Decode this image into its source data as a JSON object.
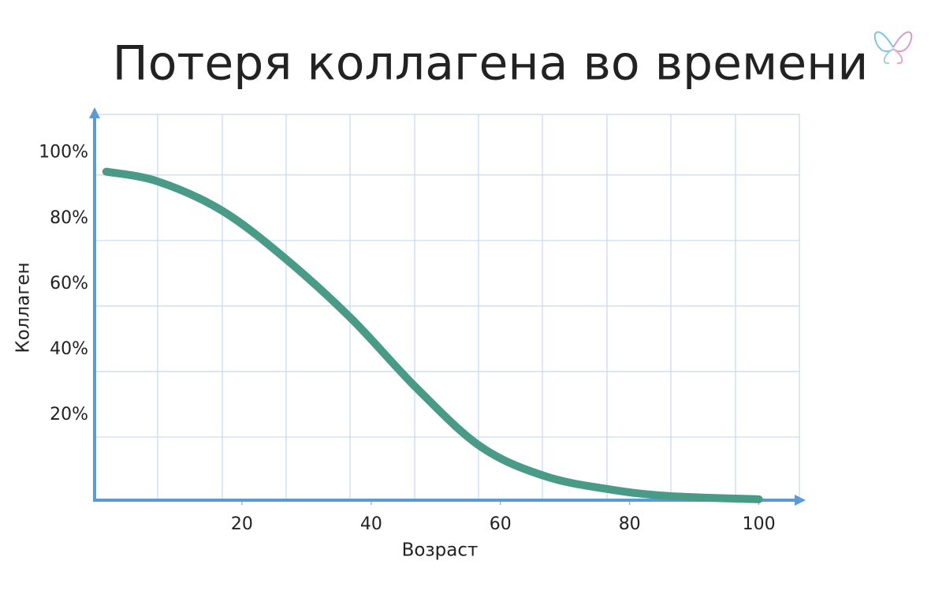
{
  "chart_data": {
    "type": "line",
    "title": "Потеря коллагена во времени",
    "x_label": "Возраст",
    "y_label": "Коллаген",
    "x": [
      -1,
      7,
      17,
      27,
      37,
      47,
      57,
      67,
      77,
      86,
      100
    ],
    "series": [
      {
        "color": "#4a9a88",
        "values": [
          101,
          98,
          89,
          74,
          56,
          35,
          17,
          8,
          4,
          2,
          1
        ]
      }
    ],
    "xlim": [
      -3,
      107
    ],
    "xticks": [
      20,
      40,
      60,
      80,
      100
    ],
    "ylim": [
      0,
      118
    ],
    "yticks": [
      {
        "value": 20,
        "label": "20%"
      },
      {
        "value": 40,
        "label": "40%"
      },
      {
        "value": 60,
        "label": "60%"
      },
      {
        "value": 80,
        "label": "80%"
      },
      {
        "value": 100,
        "label": "100%"
      }
    ],
    "grid": true,
    "title_color": "#4a9a8a",
    "axis_color": "#5b9bd5"
  }
}
